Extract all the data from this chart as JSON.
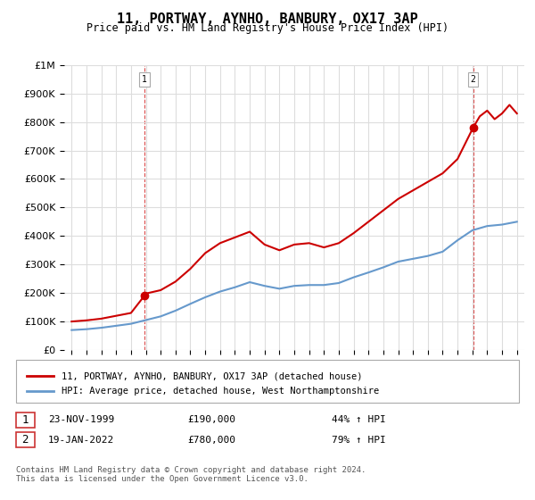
{
  "title": "11, PORTWAY, AYNHO, BANBURY, OX17 3AP",
  "subtitle": "Price paid vs. HM Land Registry's House Price Index (HPI)",
  "legend_line1": "11, PORTWAY, AYNHO, BANBURY, OX17 3AP (detached house)",
  "legend_line2": "HPI: Average price, detached house, West Northamptonshire",
  "footer": "Contains HM Land Registry data © Crown copyright and database right 2024.\nThis data is licensed under the Open Government Licence v3.0.",
  "transaction1_label": "1",
  "transaction1_date": "23-NOV-1999",
  "transaction1_price": "£190,000",
  "transaction1_hpi": "44% ↑ HPI",
  "transaction2_label": "2",
  "transaction2_date": "19-JAN-2022",
  "transaction2_price": "£780,000",
  "transaction2_hpi": "79% ↑ HPI",
  "line_color_property": "#cc0000",
  "line_color_hpi": "#6699cc",
  "ylim": [
    0,
    1000000
  ],
  "xlim_start": 1995.0,
  "xlim_end": 2025.5,
  "transaction1_x": 1999.9,
  "transaction1_y": 190000,
  "transaction2_x": 2022.05,
  "transaction2_y": 780000,
  "hpi_years": [
    1995,
    1996,
    1997,
    1998,
    1999,
    2000,
    2001,
    2002,
    2003,
    2004,
    2005,
    2006,
    2007,
    2008,
    2009,
    2010,
    2011,
    2012,
    2013,
    2014,
    2015,
    2016,
    2017,
    2018,
    2019,
    2020,
    2021,
    2022,
    2023,
    2024,
    2025
  ],
  "hpi_values": [
    70000,
    73000,
    78000,
    85000,
    92000,
    105000,
    118000,
    138000,
    162000,
    185000,
    205000,
    220000,
    238000,
    225000,
    215000,
    225000,
    228000,
    228000,
    235000,
    255000,
    272000,
    290000,
    310000,
    320000,
    330000,
    345000,
    385000,
    420000,
    435000,
    440000,
    450000
  ],
  "property_years": [
    1995,
    1996,
    1997,
    1998,
    1999,
    1999.9,
    2000,
    2001,
    2002,
    2003,
    2004,
    2005,
    2006,
    2007,
    2008,
    2009,
    2010,
    2011,
    2012,
    2013,
    2014,
    2015,
    2016,
    2017,
    2018,
    2019,
    2020,
    2021,
    2022.05,
    2022.5,
    2023,
    2023.5,
    2024,
    2024.5,
    2025
  ],
  "property_values": [
    100000,
    104000,
    110000,
    120000,
    130000,
    190000,
    198000,
    210000,
    240000,
    285000,
    340000,
    375000,
    395000,
    415000,
    370000,
    350000,
    370000,
    375000,
    360000,
    375000,
    410000,
    450000,
    490000,
    530000,
    560000,
    590000,
    620000,
    670000,
    780000,
    820000,
    840000,
    810000,
    830000,
    860000,
    830000
  ]
}
